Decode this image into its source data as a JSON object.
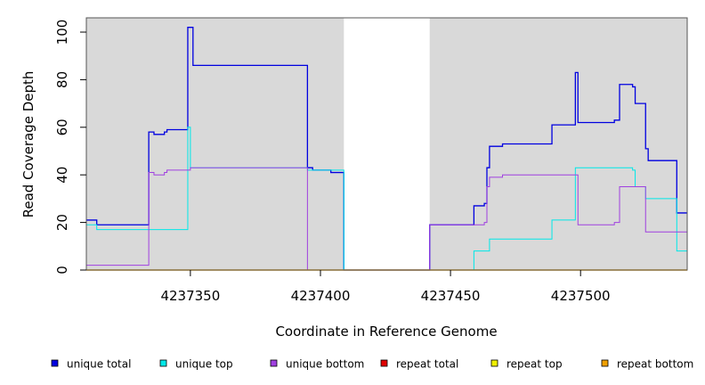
{
  "chart_data": {
    "type": "line",
    "step": true,
    "xlabel": "Coordinate in Reference Genome",
    "ylabel": "Read Coverage Depth",
    "xlim": [
      4237310,
      4237541
    ],
    "ylim": [
      0,
      106
    ],
    "x_ticks": [
      4237350,
      4237400,
      4237450,
      4237500
    ],
    "x_tick_labels": [
      "4237350",
      "4237400",
      "4237450",
      "4237500"
    ],
    "y_ticks": [
      0,
      20,
      40,
      60,
      80,
      100
    ],
    "y_tick_labels": [
      "0",
      "20",
      "40",
      "60",
      "80",
      "100"
    ],
    "shaded_regions": [
      {
        "x0": 4237310,
        "x1": 4237409,
        "color": "#d9d9d9"
      },
      {
        "x0": 4237442,
        "x1": 4237541,
        "color": "#d9d9d9"
      }
    ],
    "legend_position": "bottom",
    "series": [
      {
        "name": "unique total",
        "color": "#0000e0",
        "width": 1.3,
        "points": [
          [
            4237310,
            21
          ],
          [
            4237314,
            21
          ],
          [
            4237314,
            19
          ],
          [
            4237334,
            19
          ],
          [
            4237334,
            58
          ],
          [
            4237336,
            58
          ],
          [
            4237336,
            57
          ],
          [
            4237340,
            57
          ],
          [
            4237340,
            58
          ],
          [
            4237341,
            58
          ],
          [
            4237341,
            59
          ],
          [
            4237349,
            59
          ],
          [
            4237349,
            102
          ],
          [
            4237351,
            102
          ],
          [
            4237351,
            86
          ],
          [
            4237395,
            86
          ],
          [
            4237395,
            43
          ],
          [
            4237397,
            43
          ],
          [
            4237397,
            42
          ],
          [
            4237404,
            42
          ],
          [
            4237404,
            41
          ],
          [
            4237409,
            41
          ],
          [
            4237409,
            0
          ],
          [
            4237442,
            0
          ],
          [
            4237442,
            19
          ],
          [
            4237459,
            19
          ],
          [
            4237459,
            27
          ],
          [
            4237463,
            27
          ],
          [
            4237463,
            28
          ],
          [
            4237464,
            28
          ],
          [
            4237464,
            43
          ],
          [
            4237465,
            43
          ],
          [
            4237465,
            52
          ],
          [
            4237470,
            52
          ],
          [
            4237470,
            53
          ],
          [
            4237489,
            53
          ],
          [
            4237489,
            61
          ],
          [
            4237498,
            61
          ],
          [
            4237498,
            83
          ],
          [
            4237499,
            83
          ],
          [
            4237499,
            62
          ],
          [
            4237513,
            62
          ],
          [
            4237513,
            63
          ],
          [
            4237515,
            63
          ],
          [
            4237515,
            78
          ],
          [
            4237520,
            78
          ],
          [
            4237520,
            77
          ],
          [
            4237521,
            77
          ],
          [
            4237521,
            70
          ],
          [
            4237525,
            70
          ],
          [
            4237525,
            51
          ],
          [
            4237526,
            51
          ],
          [
            4237526,
            46
          ],
          [
            4237537,
            46
          ],
          [
            4237537,
            24
          ],
          [
            4237541,
            24
          ]
        ]
      },
      {
        "name": "unique top",
        "color": "#00e8e8",
        "width": 1,
        "points": [
          [
            4237310,
            19
          ],
          [
            4237314,
            19
          ],
          [
            4237314,
            17
          ],
          [
            4237349,
            17
          ],
          [
            4237349,
            60
          ],
          [
            4237350,
            60
          ],
          [
            4237350,
            43
          ],
          [
            4237395,
            43
          ],
          [
            4237395,
            42
          ],
          [
            4237409,
            42
          ],
          [
            4237409,
            0
          ],
          [
            4237459,
            0
          ],
          [
            4237459,
            8
          ],
          [
            4237465,
            8
          ],
          [
            4237465,
            13
          ],
          [
            4237489,
            13
          ],
          [
            4237489,
            21
          ],
          [
            4237498,
            21
          ],
          [
            4237498,
            43
          ],
          [
            4237520,
            43
          ],
          [
            4237520,
            42
          ],
          [
            4237521,
            42
          ],
          [
            4237521,
            35
          ],
          [
            4237525,
            35
          ],
          [
            4237525,
            30
          ],
          [
            4237537,
            30
          ],
          [
            4237537,
            8
          ],
          [
            4237541,
            8
          ]
        ]
      },
      {
        "name": "unique bottom",
        "color": "#a040e0",
        "width": 1,
        "points": [
          [
            4237310,
            2
          ],
          [
            4237334,
            2
          ],
          [
            4237334,
            41
          ],
          [
            4237336,
            41
          ],
          [
            4237336,
            40
          ],
          [
            4237340,
            40
          ],
          [
            4237340,
            41
          ],
          [
            4237341,
            41
          ],
          [
            4237341,
            42
          ],
          [
            4237350,
            42
          ],
          [
            4237350,
            43
          ],
          [
            4237395,
            43
          ],
          [
            4237395,
            0
          ],
          [
            4237442,
            0
          ],
          [
            4237442,
            19
          ],
          [
            4237463,
            19
          ],
          [
            4237463,
            20
          ],
          [
            4237464,
            20
          ],
          [
            4237464,
            35
          ],
          [
            4237465,
            35
          ],
          [
            4237465,
            39
          ],
          [
            4237470,
            39
          ],
          [
            4237470,
            40
          ],
          [
            4237499,
            40
          ],
          [
            4237499,
            19
          ],
          [
            4237513,
            19
          ],
          [
            4237513,
            20
          ],
          [
            4237515,
            20
          ],
          [
            4237515,
            35
          ],
          [
            4237525,
            35
          ],
          [
            4237525,
            16
          ],
          [
            4237541,
            16
          ]
        ]
      },
      {
        "name": "repeat total",
        "color": "#e00000",
        "width": 1,
        "points": [
          [
            4237310,
            0
          ],
          [
            4237541,
            0
          ]
        ]
      },
      {
        "name": "repeat top",
        "color": "#f0f000",
        "width": 1,
        "points": [
          [
            4237310,
            0
          ],
          [
            4237541,
            0
          ]
        ]
      },
      {
        "name": "repeat bottom",
        "color": "#f0a000",
        "width": 1.5,
        "points": [
          [
            4237310,
            0
          ],
          [
            4237541,
            0
          ]
        ]
      }
    ]
  }
}
